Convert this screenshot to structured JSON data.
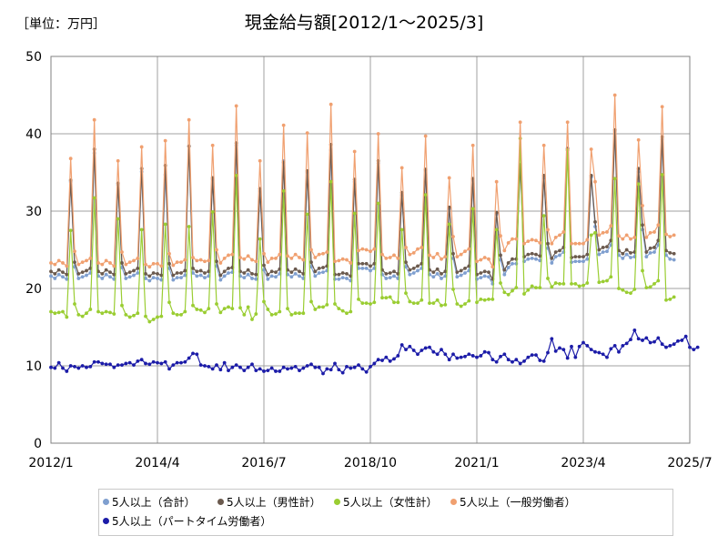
{
  "unit_label": "［単位：万円］",
  "chart_data": {
    "type": "line",
    "title": "現金給与額[2012/1～2025/3]",
    "xlabel": "",
    "ylabel": "",
    "ylim": [
      0,
      50
    ],
    "y_ticks": [
      "0",
      "10",
      "20",
      "30",
      "40",
      "50"
    ],
    "xlim": [
      "2012/1",
      "2025/7"
    ],
    "x_ticks": [
      "2012/1",
      "2014/4",
      "2016/7",
      "2018/10",
      "2021/1",
      "2023/4",
      "2025/7"
    ],
    "grid": true,
    "legend_position": "bottom",
    "x_start": "2012/1",
    "x_end": "2025/3",
    "series": [
      {
        "name": "5人以上（合計）",
        "color": "#7f9fcf",
        "values": [
          21.6,
          21.3,
          21.8,
          21.5,
          21.2,
          33.8,
          22.8,
          21.3,
          21.5,
          21.7,
          22.0,
          37.5,
          21.6,
          21.3,
          21.8,
          21.5,
          21.2,
          33.4,
          22.7,
          21.3,
          21.5,
          21.7,
          22.0,
          35.1,
          21.3,
          21.0,
          21.4,
          21.3,
          21.1,
          34.7,
          22.6,
          21.1,
          21.4,
          21.4,
          21.7,
          38.4,
          22.0,
          21.6,
          21.7,
          21.4,
          21.6,
          34.1,
          22.9,
          21.1,
          21.6,
          22.0,
          22.1,
          38.5,
          21.6,
          21.4,
          21.8,
          21.3,
          21.2,
          32.6,
          22.4,
          21.2,
          21.6,
          21.5,
          21.9,
          36.5,
          21.8,
          21.5,
          21.9,
          21.6,
          21.3,
          35.0,
          22.8,
          21.6,
          22.0,
          22.1,
          22.3,
          37.9,
          21.2,
          21.2,
          21.4,
          21.3,
          21.0,
          33.8,
          22.6,
          22.6,
          22.6,
          22.3,
          22.6,
          36.2,
          21.8,
          21.3,
          21.4,
          21.6,
          21.3,
          32.1,
          22.8,
          21.8,
          22.0,
          22.3,
          22.6,
          35.2,
          21.8,
          21.5,
          21.9,
          21.3,
          21.6,
          30.3,
          23.9,
          21.5,
          21.7,
          22.0,
          22.3,
          34.0,
          21.2,
          21.4,
          21.6,
          21.5,
          20.6,
          29.6,
          23.7,
          21.8,
          22.7,
          23.2,
          23.2,
          35.8,
          23.5,
          23.8,
          23.9,
          23.8,
          23.6,
          34.3,
          25.2,
          23.3,
          24.1,
          24.3,
          24.7,
          37.9,
          23.4,
          23.5,
          23.5,
          23.5,
          23.8,
          34.4,
          28.0,
          24.4,
          24.7,
          24.8,
          25.6,
          40.3,
          24.3,
          23.9,
          24.4,
          24.0,
          24.1,
          35.1,
          27.6,
          24.1,
          24.6,
          24.7,
          25.6,
          39.3,
          24.3,
          23.8,
          23.7
        ]
      },
      {
        "name": "5人以上（男性計）",
        "color": "#6b5a4e",
        "values": [
          22.2,
          21.9,
          22.4,
          22.1,
          21.8,
          34.0,
          23.4,
          21.9,
          22.1,
          22.3,
          22.6,
          38.0,
          22.2,
          21.9,
          22.4,
          22.1,
          21.8,
          33.6,
          23.3,
          21.9,
          22.1,
          22.3,
          22.6,
          35.5,
          21.9,
          21.6,
          22.0,
          21.9,
          21.7,
          35.9,
          23.2,
          21.7,
          22.0,
          22.0,
          22.3,
          38.4,
          22.6,
          22.2,
          22.3,
          22.0,
          22.2,
          34.3,
          23.5,
          21.7,
          22.2,
          22.6,
          22.7,
          38.8,
          22.2,
          22.0,
          22.4,
          21.9,
          21.8,
          32.9,
          23.0,
          21.8,
          22.2,
          22.1,
          22.5,
          36.3,
          22.4,
          22.1,
          22.5,
          22.2,
          21.9,
          35.2,
          23.4,
          22.2,
          22.6,
          22.7,
          22.9,
          38.6,
          21.8,
          21.8,
          22.0,
          21.9,
          21.6,
          34.1,
          23.2,
          23.2,
          23.2,
          22.9,
          23.2,
          36.5,
          22.4,
          21.9,
          22.0,
          22.2,
          21.9,
          32.4,
          23.4,
          22.4,
          22.6,
          22.9,
          23.2,
          35.4,
          22.4,
          22.1,
          22.5,
          21.9,
          22.2,
          30.5,
          24.5,
          22.1,
          22.3,
          22.6,
          22.9,
          34.2,
          21.8,
          22.0,
          22.2,
          22.1,
          21.2,
          29.8,
          24.3,
          22.4,
          23.3,
          23.8,
          23.8,
          36.0,
          24.1,
          24.4,
          24.5,
          24.4,
          24.2,
          34.6,
          25.8,
          23.9,
          24.7,
          24.9,
          25.3,
          38.1,
          24.0,
          24.1,
          24.1,
          24.1,
          24.4,
          34.6,
          28.6,
          25.0,
          25.3,
          25.4,
          26.2,
          40.5,
          24.9,
          24.5,
          25.0,
          24.6,
          24.7,
          35.5,
          28.2,
          24.7,
          25.2,
          25.3,
          26.2,
          39.6,
          24.9,
          24.6,
          24.5
        ]
      },
      {
        "name": "5人以上（女性計）",
        "color": "#9acd32",
        "values": [
          17.0,
          16.8,
          16.9,
          17.0,
          16.3,
          27.5,
          18.0,
          16.6,
          16.4,
          16.8,
          17.3,
          31.7,
          17.0,
          16.8,
          17.0,
          16.9,
          16.7,
          29.0,
          17.8,
          16.6,
          16.3,
          16.5,
          16.8,
          27.6,
          16.4,
          15.7,
          16.0,
          16.3,
          16.4,
          28.3,
          18.2,
          16.8,
          16.6,
          16.6,
          17.0,
          28.0,
          17.8,
          17.3,
          17.2,
          16.9,
          17.4,
          29.9,
          18.0,
          16.9,
          17.4,
          17.6,
          17.4,
          34.6,
          17.5,
          16.6,
          17.6,
          16.0,
          16.7,
          26.4,
          18.3,
          17.3,
          16.6,
          16.7,
          17.0,
          32.6,
          17.4,
          16.6,
          16.8,
          16.8,
          16.8,
          29.6,
          18.3,
          17.3,
          17.6,
          17.6,
          17.9,
          33.8,
          18.0,
          17.4,
          17.1,
          16.8,
          17.0,
          29.7,
          18.6,
          18.1,
          18.1,
          18.0,
          18.2,
          31.0,
          18.8,
          18.8,
          18.9,
          18.2,
          18.2,
          27.6,
          19.4,
          18.3,
          18.1,
          18.1,
          18.5,
          32.1,
          18.1,
          18.1,
          18.5,
          17.8,
          17.9,
          28.3,
          19.9,
          18.0,
          17.7,
          18.0,
          18.4,
          30.3,
          18.2,
          18.6,
          18.5,
          18.6,
          18.6,
          27.6,
          20.7,
          19.5,
          19.2,
          19.7,
          20.1,
          39.4,
          19.3,
          19.8,
          20.3,
          20.1,
          20.1,
          29.4,
          21.3,
          20.2,
          20.7,
          20.6,
          20.6,
          37.9,
          20.6,
          20.6,
          20.3,
          20.4,
          20.7,
          26.9,
          27.2,
          20.8,
          20.9,
          21.0,
          21.5,
          34.2,
          20.0,
          19.8,
          19.5,
          19.4,
          19.9,
          33.5,
          22.3,
          20.1,
          20.2,
          20.6,
          21.0,
          34.7,
          18.5,
          18.6,
          18.9
        ]
      },
      {
        "name": "5人以上（一般労働者）",
        "color": "#f0a070",
        "values": [
          23.3,
          23.1,
          23.6,
          23.3,
          22.9,
          36.8,
          24.8,
          23.1,
          23.4,
          23.6,
          23.9,
          41.8,
          23.3,
          23.1,
          23.6,
          23.3,
          22.9,
          36.5,
          24.7,
          23.1,
          23.4,
          23.6,
          23.9,
          38.3,
          23.1,
          22.8,
          23.2,
          23.2,
          22.9,
          39.1,
          24.5,
          23.0,
          23.4,
          23.4,
          23.7,
          41.8,
          24.0,
          23.6,
          23.7,
          23.5,
          23.6,
          38.5,
          25.0,
          23.3,
          23.9,
          24.3,
          24.4,
          43.6,
          24.0,
          23.8,
          24.2,
          23.7,
          23.5,
          36.5,
          24.5,
          23.4,
          23.9,
          23.9,
          24.4,
          41.1,
          24.2,
          23.9,
          24.4,
          24.0,
          23.7,
          40.1,
          25.0,
          24.0,
          24.4,
          24.5,
          24.7,
          43.8,
          23.5,
          23.6,
          23.8,
          23.7,
          23.3,
          37.7,
          24.9,
          25.1,
          25.0,
          24.8,
          25.1,
          40.0,
          24.4,
          23.9,
          24.0,
          24.3,
          23.9,
          35.6,
          25.3,
          24.4,
          24.6,
          25.1,
          25.3,
          39.7,
          24.3,
          24.0,
          24.5,
          23.8,
          24.1,
          34.3,
          26.7,
          24.1,
          24.4,
          24.8,
          25.1,
          38.5,
          23.5,
          23.7,
          24.0,
          23.8,
          22.8,
          33.8,
          26.8,
          24.9,
          25.9,
          26.4,
          26.4,
          41.5,
          25.8,
          26.1,
          26.3,
          26.2,
          25.9,
          38.5,
          27.6,
          25.8,
          26.6,
          26.9,
          27.3,
          41.5,
          25.8,
          25.8,
          25.8,
          25.8,
          26.3,
          38.0,
          33.8,
          26.9,
          27.2,
          27.3,
          28.1,
          45.0,
          26.8,
          26.4,
          26.9,
          26.4,
          26.6,
          39.2,
          30.7,
          26.6,
          27.2,
          27.3,
          28.2,
          43.5,
          27.0,
          26.7,
          26.9
        ]
      },
      {
        "name": "5人以上（パートタイム労働者）",
        "color": "#1c1ca8",
        "values": [
          9.8,
          9.7,
          10.4,
          9.7,
          9.3,
          10.0,
          9.9,
          9.7,
          10.0,
          9.8,
          9.9,
          10.5,
          10.5,
          10.3,
          10.2,
          10.2,
          9.8,
          10.1,
          10.1,
          10.3,
          10.4,
          10.1,
          10.6,
          10.8,
          10.3,
          10.2,
          10.5,
          10.4,
          10.3,
          10.5,
          9.6,
          10.1,
          10.4,
          10.4,
          10.5,
          11.0,
          11.6,
          11.5,
          10.1,
          10.0,
          9.9,
          9.6,
          10.1,
          9.5,
          10.4,
          9.4,
          9.8,
          10.1,
          9.8,
          9.4,
          9.8,
          10.2,
          9.4,
          9.6,
          9.3,
          9.4,
          9.7,
          9.3,
          9.3,
          9.8,
          9.6,
          9.7,
          9.9,
          9.4,
          9.7,
          10.0,
          10.2,
          9.8,
          9.8,
          9.0,
          9.6,
          9.5,
          10.3,
          9.5,
          9.1,
          9.9,
          9.7,
          9.8,
          10.1,
          9.6,
          9.2,
          9.9,
          10.3,
          10.8,
          10.7,
          11.1,
          10.6,
          10.9,
          11.3,
          12.7,
          12.1,
          12.5,
          12.0,
          11.5,
          12.0,
          12.3,
          12.4,
          11.8,
          11.5,
          12.1,
          11.5,
          10.8,
          11.5,
          11.0,
          11.1,
          11.2,
          11.5,
          11.3,
          11.1,
          11.3,
          11.8,
          11.7,
          10.8,
          10.5,
          11.2,
          11.5,
          10.8,
          10.5,
          10.8,
          10.3,
          10.6,
          11.1,
          11.4,
          11.4,
          10.7,
          10.6,
          11.7,
          13.5,
          11.9,
          12.3,
          12.1,
          11.0,
          12.5,
          11.1,
          12.5,
          13.0,
          12.6,
          12.1,
          11.8,
          11.7,
          11.5,
          11.1,
          12.2,
          12.6,
          11.8,
          12.6,
          12.9,
          13.4,
          14.6,
          13.5,
          13.3,
          13.6,
          13.0,
          13.1,
          13.6,
          12.8,
          12.4,
          12.6,
          12.8,
          13.2,
          13.3,
          13.8,
          12.4,
          12.1,
          12.4
        ]
      }
    ]
  }
}
